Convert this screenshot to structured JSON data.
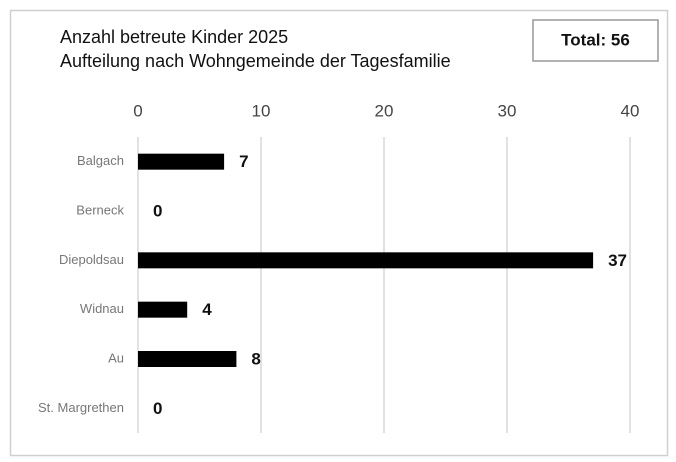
{
  "chart_data": {
    "type": "bar",
    "orientation": "horizontal",
    "title": "Anzahl betreute Kinder 2025",
    "subtitle": "Aufteilung nach Wohngemeinde der Tagesfamilie",
    "annotation": "Total: 56",
    "categories": [
      "Balgach",
      "Berneck",
      "Diepoldsau",
      "Widnau",
      "Au",
      "St. Margrethen"
    ],
    "values": [
      7,
      0,
      37,
      4,
      8,
      0
    ],
    "color": "#000000",
    "xlim": [
      0,
      40
    ],
    "xticks": [
      0,
      10,
      20,
      30,
      40
    ],
    "grid": true
  }
}
